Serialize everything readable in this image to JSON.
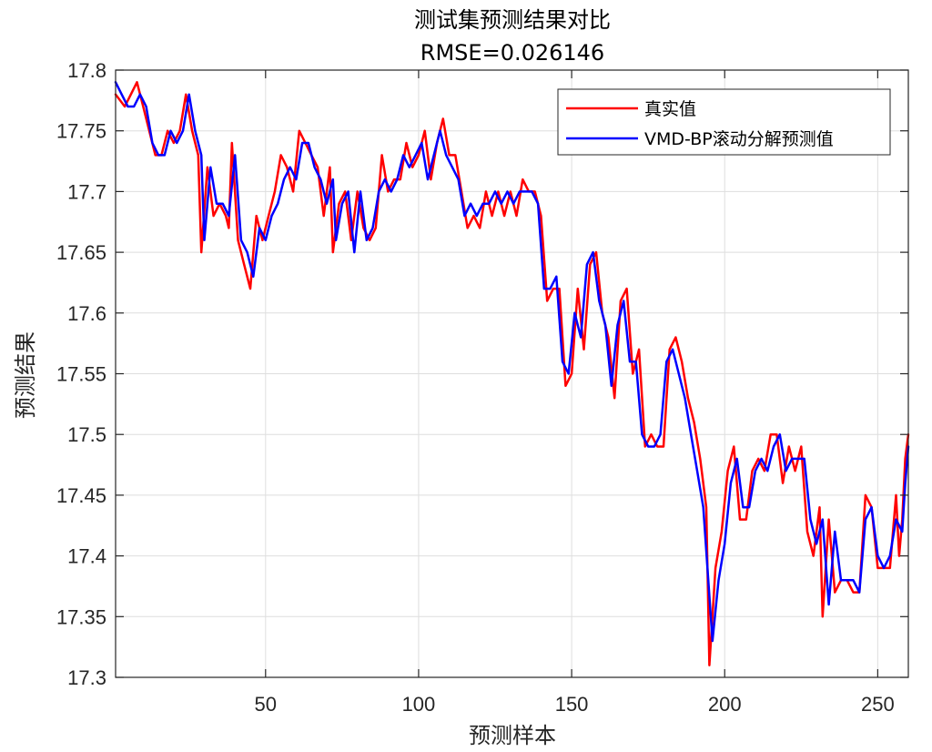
{
  "chart_data": {
    "type": "line",
    "title": "测试集预测结果对比",
    "subtitle": "RMSE=0.026146",
    "xlabel": "预测样本",
    "ylabel": "预测结果",
    "xlim": [
      1,
      260
    ],
    "ylim": [
      17.3,
      17.8
    ],
    "xticks": [
      50,
      100,
      150,
      200,
      250
    ],
    "yticks": [
      17.3,
      17.35,
      17.4,
      17.45,
      17.5,
      17.55,
      17.6,
      17.65,
      17.7,
      17.75,
      17.8
    ],
    "grid": true,
    "legend_position": "top-right",
    "series": [
      {
        "name": "真实值",
        "color": "#ff0000",
        "points": [
          [
            1,
            17.78
          ],
          [
            4,
            17.77
          ],
          [
            6,
            17.78
          ],
          [
            8,
            17.79
          ],
          [
            10,
            17.77
          ],
          [
            12,
            17.75
          ],
          [
            14,
            17.73
          ],
          [
            16,
            17.73
          ],
          [
            18,
            17.75
          ],
          [
            20,
            17.74
          ],
          [
            22,
            17.75
          ],
          [
            24,
            17.78
          ],
          [
            26,
            17.75
          ],
          [
            28,
            17.73
          ],
          [
            29,
            17.65
          ],
          [
            31,
            17.72
          ],
          [
            33,
            17.68
          ],
          [
            35,
            17.69
          ],
          [
            37,
            17.68
          ],
          [
            38,
            17.67
          ],
          [
            39,
            17.74
          ],
          [
            41,
            17.66
          ],
          [
            43,
            17.64
          ],
          [
            45,
            17.62
          ],
          [
            47,
            17.68
          ],
          [
            49,
            17.66
          ],
          [
            51,
            17.68
          ],
          [
            53,
            17.7
          ],
          [
            55,
            17.73
          ],
          [
            57,
            17.72
          ],
          [
            59,
            17.7
          ],
          [
            61,
            17.75
          ],
          [
            63,
            17.74
          ],
          [
            65,
            17.73
          ],
          [
            67,
            17.72
          ],
          [
            69,
            17.68
          ],
          [
            71,
            17.72
          ],
          [
            72,
            17.65
          ],
          [
            74,
            17.69
          ],
          [
            76,
            17.7
          ],
          [
            78,
            17.66
          ],
          [
            80,
            17.7
          ],
          [
            82,
            17.67
          ],
          [
            84,
            17.66
          ],
          [
            86,
            17.67
          ],
          [
            88,
            17.73
          ],
          [
            90,
            17.7
          ],
          [
            92,
            17.71
          ],
          [
            94,
            17.71
          ],
          [
            96,
            17.74
          ],
          [
            98,
            17.72
          ],
          [
            100,
            17.73
          ],
          [
            102,
            17.75
          ],
          [
            104,
            17.71
          ],
          [
            106,
            17.74
          ],
          [
            108,
            17.76
          ],
          [
            110,
            17.73
          ],
          [
            112,
            17.73
          ],
          [
            114,
            17.7
          ],
          [
            116,
            17.67
          ],
          [
            118,
            17.68
          ],
          [
            120,
            17.67
          ],
          [
            122,
            17.7
          ],
          [
            124,
            17.68
          ],
          [
            126,
            17.7
          ],
          [
            128,
            17.68
          ],
          [
            130,
            17.7
          ],
          [
            132,
            17.68
          ],
          [
            134,
            17.71
          ],
          [
            136,
            17.7
          ],
          [
            138,
            17.7
          ],
          [
            140,
            17.68
          ],
          [
            142,
            17.61
          ],
          [
            144,
            17.62
          ],
          [
            146,
            17.62
          ],
          [
            148,
            17.54
          ],
          [
            150,
            17.55
          ],
          [
            152,
            17.62
          ],
          [
            154,
            17.57
          ],
          [
            156,
            17.64
          ],
          [
            158,
            17.65
          ],
          [
            160,
            17.6
          ],
          [
            162,
            17.58
          ],
          [
            164,
            17.53
          ],
          [
            166,
            17.61
          ],
          [
            168,
            17.62
          ],
          [
            170,
            17.55
          ],
          [
            172,
            17.57
          ],
          [
            174,
            17.49
          ],
          [
            176,
            17.5
          ],
          [
            178,
            17.49
          ],
          [
            180,
            17.49
          ],
          [
            182,
            17.57
          ],
          [
            184,
            17.58
          ],
          [
            186,
            17.56
          ],
          [
            188,
            17.53
          ],
          [
            190,
            17.51
          ],
          [
            192,
            17.48
          ],
          [
            194,
            17.44
          ],
          [
            195,
            17.31
          ],
          [
            197,
            17.39
          ],
          [
            199,
            17.42
          ],
          [
            201,
            17.47
          ],
          [
            203,
            17.49
          ],
          [
            205,
            17.43
          ],
          [
            207,
            17.43
          ],
          [
            209,
            17.47
          ],
          [
            211,
            17.48
          ],
          [
            213,
            17.47
          ],
          [
            215,
            17.5
          ],
          [
            217,
            17.5
          ],
          [
            219,
            17.46
          ],
          [
            221,
            17.49
          ],
          [
            223,
            17.47
          ],
          [
            225,
            17.49
          ],
          [
            227,
            17.42
          ],
          [
            229,
            17.4
          ],
          [
            231,
            17.44
          ],
          [
            232,
            17.35
          ],
          [
            234,
            17.43
          ],
          [
            236,
            17.37
          ],
          [
            238,
            17.38
          ],
          [
            240,
            17.38
          ],
          [
            242,
            17.37
          ],
          [
            244,
            17.37
          ],
          [
            246,
            17.45
          ],
          [
            248,
            17.44
          ],
          [
            250,
            17.39
          ],
          [
            252,
            17.39
          ],
          [
            254,
            17.39
          ],
          [
            256,
            17.45
          ],
          [
            257,
            17.4
          ],
          [
            258,
            17.43
          ],
          [
            259,
            17.48
          ],
          [
            260,
            17.5
          ]
        ]
      },
      {
        "name": "VMD-BP滚动分解预测值",
        "color": "#0000ff",
        "points": [
          [
            1,
            17.79
          ],
          [
            3,
            17.78
          ],
          [
            5,
            17.77
          ],
          [
            7,
            17.77
          ],
          [
            9,
            17.78
          ],
          [
            11,
            17.77
          ],
          [
            13,
            17.74
          ],
          [
            15,
            17.73
          ],
          [
            17,
            17.73
          ],
          [
            19,
            17.75
          ],
          [
            21,
            17.74
          ],
          [
            23,
            17.75
          ],
          [
            25,
            17.78
          ],
          [
            27,
            17.75
          ],
          [
            29,
            17.73
          ],
          [
            30,
            17.66
          ],
          [
            32,
            17.72
          ],
          [
            34,
            17.69
          ],
          [
            36,
            17.69
          ],
          [
            38,
            17.68
          ],
          [
            40,
            17.73
          ],
          [
            42,
            17.66
          ],
          [
            44,
            17.65
          ],
          [
            46,
            17.63
          ],
          [
            48,
            17.67
          ],
          [
            50,
            17.66
          ],
          [
            52,
            17.68
          ],
          [
            54,
            17.69
          ],
          [
            56,
            17.71
          ],
          [
            58,
            17.72
          ],
          [
            60,
            17.71
          ],
          [
            62,
            17.74
          ],
          [
            64,
            17.74
          ],
          [
            66,
            17.72
          ],
          [
            68,
            17.71
          ],
          [
            70,
            17.69
          ],
          [
            72,
            17.71
          ],
          [
            73,
            17.66
          ],
          [
            75,
            17.69
          ],
          [
            77,
            17.7
          ],
          [
            79,
            17.65
          ],
          [
            81,
            17.7
          ],
          [
            83,
            17.66
          ],
          [
            85,
            17.67
          ],
          [
            87,
            17.7
          ],
          [
            89,
            17.71
          ],
          [
            91,
            17.7
          ],
          [
            93,
            17.71
          ],
          [
            95,
            17.73
          ],
          [
            97,
            17.72
          ],
          [
            99,
            17.73
          ],
          [
            101,
            17.74
          ],
          [
            103,
            17.71
          ],
          [
            105,
            17.73
          ],
          [
            107,
            17.75
          ],
          [
            109,
            17.73
          ],
          [
            111,
            17.72
          ],
          [
            113,
            17.71
          ],
          [
            115,
            17.68
          ],
          [
            117,
            17.69
          ],
          [
            119,
            17.68
          ],
          [
            121,
            17.69
          ],
          [
            123,
            17.69
          ],
          [
            125,
            17.7
          ],
          [
            127,
            17.69
          ],
          [
            129,
            17.7
          ],
          [
            131,
            17.69
          ],
          [
            133,
            17.7
          ],
          [
            135,
            17.7
          ],
          [
            137,
            17.7
          ],
          [
            139,
            17.69
          ],
          [
            141,
            17.62
          ],
          [
            143,
            17.62
          ],
          [
            145,
            17.63
          ],
          [
            147,
            17.56
          ],
          [
            149,
            17.55
          ],
          [
            151,
            17.6
          ],
          [
            153,
            17.58
          ],
          [
            155,
            17.64
          ],
          [
            157,
            17.65
          ],
          [
            159,
            17.61
          ],
          [
            161,
            17.59
          ],
          [
            163,
            17.54
          ],
          [
            165,
            17.59
          ],
          [
            167,
            17.61
          ],
          [
            169,
            17.56
          ],
          [
            171,
            17.56
          ],
          [
            173,
            17.5
          ],
          [
            175,
            17.49
          ],
          [
            177,
            17.49
          ],
          [
            179,
            17.5
          ],
          [
            181,
            17.56
          ],
          [
            183,
            17.57
          ],
          [
            185,
            17.55
          ],
          [
            187,
            17.53
          ],
          [
            189,
            17.5
          ],
          [
            191,
            17.47
          ],
          [
            193,
            17.44
          ],
          [
            196,
            17.33
          ],
          [
            198,
            17.38
          ],
          [
            200,
            17.41
          ],
          [
            202,
            17.46
          ],
          [
            204,
            17.48
          ],
          [
            206,
            17.44
          ],
          [
            208,
            17.44
          ],
          [
            210,
            17.47
          ],
          [
            212,
            17.48
          ],
          [
            214,
            17.47
          ],
          [
            216,
            17.49
          ],
          [
            218,
            17.5
          ],
          [
            220,
            17.47
          ],
          [
            222,
            17.48
          ],
          [
            224,
            17.48
          ],
          [
            226,
            17.48
          ],
          [
            228,
            17.43
          ],
          [
            230,
            17.41
          ],
          [
            232,
            17.43
          ],
          [
            234,
            17.36
          ],
          [
            236,
            17.42
          ],
          [
            238,
            17.38
          ],
          [
            240,
            17.38
          ],
          [
            242,
            17.38
          ],
          [
            244,
            17.37
          ],
          [
            246,
            17.43
          ],
          [
            248,
            17.44
          ],
          [
            250,
            17.4
          ],
          [
            252,
            17.39
          ],
          [
            254,
            17.4
          ],
          [
            256,
            17.43
          ],
          [
            258,
            17.42
          ],
          [
            259,
            17.46
          ],
          [
            260,
            17.49
          ]
        ]
      }
    ]
  }
}
